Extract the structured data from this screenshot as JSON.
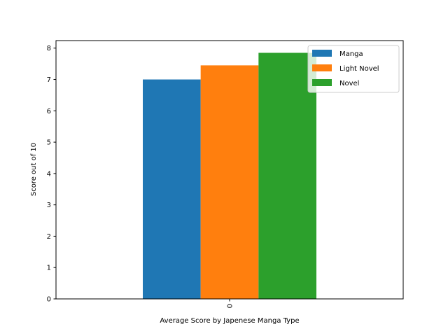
{
  "chart_data": {
    "type": "bar",
    "categories": [
      "0"
    ],
    "series": [
      {
        "name": "Manga",
        "values": [
          7.0
        ],
        "color": "#1f77b4"
      },
      {
        "name": "Light Novel",
        "values": [
          7.45
        ],
        "color": "#ff7f0e"
      },
      {
        "name": "Novel",
        "values": [
          7.85
        ],
        "color": "#2ca02c"
      }
    ],
    "title": "",
    "xlabel": "Average Score by Japenese Manga Type",
    "ylabel": "Score out of 10",
    "ylim": [
      0,
      8.24
    ],
    "yticks": [
      0,
      1,
      2,
      3,
      4,
      5,
      6,
      7,
      8
    ],
    "xtick_rotation": "vertical",
    "grid": false,
    "legend_position": "top-right"
  }
}
